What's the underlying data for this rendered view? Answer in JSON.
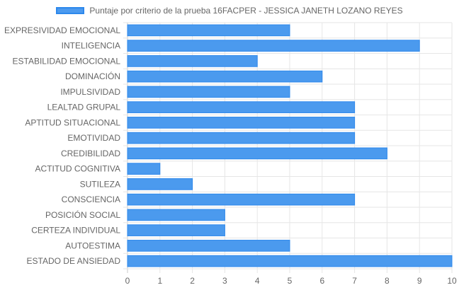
{
  "chart_data": {
    "type": "bar",
    "orientation": "horizontal",
    "title": "",
    "legend": {
      "position": "top",
      "label": "Puntaje por criterio de la prueba 16FACPER - JESSICA JANETH LOZANO REYES"
    },
    "colors": {
      "bar_fill": "#4b9aee",
      "bar_border": "#2d88ec",
      "grid": "#e6e6e6",
      "axis_text": "#666666"
    },
    "categories": [
      "EXPRESIVIDAD EMOCIONAL",
      "INTELIGENCIA",
      "ESTABILIDAD EMOCIONAL",
      "DOMINACIÓN",
      "IMPULSIVIDAD",
      "LEALTAD GRUPAL",
      "APTITUD SITUACIONAL",
      "EMOTIVIDAD",
      "CREDIBILIDAD",
      "ACTITUD COGNITIVA",
      "SUTILEZA",
      "CONSCIENCIA",
      "POSICIÓN SOCIAL",
      "CERTEZA INDIVIDUAL",
      "AUTOESTIMA",
      "ESTADO DE ANSIEDAD"
    ],
    "values": [
      5,
      9,
      4,
      6,
      5,
      7,
      7,
      7,
      8,
      1,
      2,
      7,
      3,
      3,
      5,
      10
    ],
    "xlim": [
      0,
      10
    ],
    "xticks": [
      "0",
      "1",
      "2",
      "3",
      "4",
      "5",
      "6",
      "7",
      "8",
      "9",
      "10"
    ],
    "grid": true
  }
}
